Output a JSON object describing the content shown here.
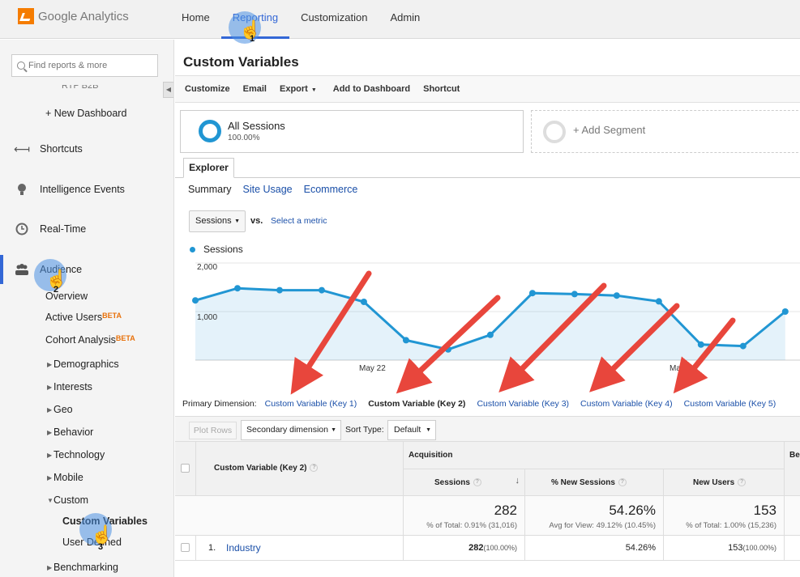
{
  "app": {
    "logo_text": "Google Analytics"
  },
  "topnav": {
    "items": [
      "Home",
      "Reporting",
      "Customization",
      "Admin"
    ],
    "active": "Reporting"
  },
  "sidebar": {
    "search_placeholder": "Find reports & more",
    "partial_item": "RTP B2B",
    "new_dashboard": "+ New Dashboard",
    "main_items": [
      "Shortcuts",
      "Intelligence Events",
      "Real-Time",
      "Audience"
    ],
    "audience_children": {
      "overview": "Overview",
      "active_users": "Active Users",
      "cohort": "Cohort Analysis",
      "beta": "BETA"
    },
    "expandable": [
      "Demographics",
      "Interests",
      "Geo",
      "Behavior",
      "Technology",
      "Mobile",
      "Custom"
    ],
    "custom_children": [
      "Custom Variables",
      "User Defined"
    ],
    "benchmarking": "Benchmarking"
  },
  "main": {
    "title": "Custom Variables",
    "toolbar": [
      "Customize",
      "Email",
      "Export",
      "Add to Dashboard",
      "Shortcut"
    ],
    "segment": {
      "name": "All Sessions",
      "pct": "100.00%",
      "add": "+ Add Segment"
    },
    "explorer_tab": "Explorer",
    "subtabs": [
      "Summary",
      "Site Usage",
      "Ecommerce"
    ],
    "metric": "Sessions",
    "vs": "vs.",
    "select_metric": "Select a metric",
    "primary_dimension_label": "Primary Dimension:",
    "primary_dimensions": [
      "Custom Variable (Key 1)",
      "Custom Variable (Key 2)",
      "Custom Variable (Key 3)",
      "Custom Variable (Key 4)",
      "Custom Variable (Key 5)"
    ],
    "plot_rows": "Plot Rows",
    "secondary_dimension": "Secondary dimension",
    "sort_type_label": "Sort Type:",
    "sort_type": "Default",
    "table": {
      "dim_header": "Custom Variable (Key 2)",
      "group_acquisition": "Acquisition",
      "group_behavior_partial": "Be",
      "col_sessions": "Sessions",
      "col_new_sessions": "% New Sessions",
      "col_new_users": "New Users",
      "totals": {
        "sessions": "282",
        "sessions_sub": "% of Total: 0.91% (31,016)",
        "new_sessions": "54.26%",
        "new_sessions_sub": "Avg for View: 49.12% (10.45%)",
        "new_users": "153",
        "new_users_sub": "% of Total: 1.00% (15,236)"
      },
      "rows": [
        {
          "index": "1.",
          "name": "Industry",
          "sessions": "282",
          "sessions_pct": "(100.00%)",
          "new_sessions": "54.26%",
          "new_users": "153",
          "new_users_pct": "(100.00%)"
        }
      ]
    }
  },
  "chart_data": {
    "type": "area",
    "series": [
      {
        "name": "Sessions",
        "values": [
          1230,
          1480,
          1440,
          1440,
          1200,
          410,
          220,
          520,
          1380,
          1360,
          1330,
          1210,
          320,
          290,
          1000
        ]
      }
    ],
    "x_tick_labels": [
      "May 22",
      "May 29"
    ],
    "y_tick_labels": [
      "2,000",
      "1,000"
    ],
    "ylim": [
      0,
      2000
    ],
    "color": "#2196d3"
  },
  "annotations": [
    "1",
    "2",
    "3"
  ],
  "colors": {
    "accent": "#3367d6",
    "chart": "#2196d3",
    "arrow": "#e8463c",
    "link": "#1a4fa8"
  }
}
